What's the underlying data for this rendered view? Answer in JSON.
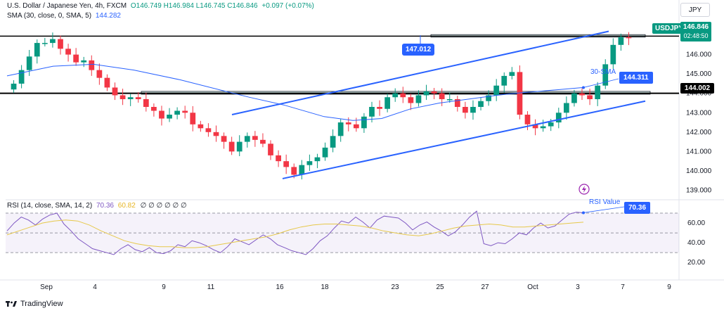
{
  "header": {
    "symbol_line": "U.S. Dollar / Japanese Yen, 4h, FXCM",
    "ohlc": "O146.749 H146.984 L146.745 C146.846",
    "change": "+0.097 (+0.07%)",
    "sma_label": "SMA (30, close, 0, SMA, 5)",
    "sma_value": "144.282",
    "rsi_label": "RSI (14, close, SMA, 14, 2)",
    "rsi_value": "70.36",
    "rsi_sma_value": "60.82",
    "rsi_tail": "∅ ∅ ∅ ∅ ∅ ∅"
  },
  "currency_button": "JPY",
  "price_badge": {
    "symbol": "USDJPY",
    "price": "146.846",
    "timer": "02:48:50"
  },
  "level_badge": "144.002",
  "sma_badge": "144.311",
  "sma_annotation": "30-SMA",
  "callout_147": "147.012",
  "rsi_badge": "70.36",
  "rsi_annotation": "RSI Value",
  "footer": {
    "brand": "TradingView"
  },
  "colors": {
    "up": "#089981",
    "down": "#f23645",
    "sma": "#2962ff",
    "rsi": "#7e57c2",
    "rsi_ma": "#e6c84a",
    "channel": "#2962ff"
  },
  "chart_data": [
    {
      "type": "candlestick",
      "title": "U.S. Dollar / Japanese Yen, 4h, FXCM",
      "y_ticks": [
        139.0,
        140.0,
        141.0,
        142.0,
        143.0,
        144.0,
        145.0,
        146.0
      ],
      "y_tick_labels": [
        "139.000",
        "140.000",
        "141.000",
        "142.000",
        "143.000",
        "144.000",
        "145.000",
        "146.000"
      ],
      "ylim": [
        138.8,
        147.8
      ],
      "x_tick_labels": [
        "Sep",
        "4",
        "9",
        "11",
        "16",
        "18",
        "23",
        "25",
        "27",
        "Oct",
        "3",
        "7",
        "9"
      ],
      "horizontal_lines": [
        146.95,
        144.002
      ],
      "zones": [
        {
          "low": 146.9,
          "high": 147.03
        },
        {
          "low": 143.99,
          "high": 144.1
        }
      ],
      "close_series": [
        144.5,
        145.2,
        145.9,
        146.6,
        146.6,
        146.8,
        146.3,
        146.0,
        145.6,
        145.7,
        145.2,
        144.8,
        144.3,
        143.9,
        143.7,
        143.8,
        143.7,
        143.3,
        143.1,
        142.7,
        142.9,
        143.1,
        143.0,
        142.4,
        142.2,
        142.0,
        141.8,
        141.5,
        141.0,
        141.5,
        141.8,
        141.6,
        141.4,
        140.8,
        140.5,
        140.2,
        139.8,
        140.3,
        140.5,
        140.7,
        141.2,
        141.8,
        142.5,
        142.4,
        142.2,
        142.8,
        143.3,
        143.2,
        143.8,
        144.0,
        143.8,
        143.5,
        143.9,
        144.1,
        144.0,
        143.7,
        143.7,
        143.3,
        143.0,
        143.3,
        143.6,
        143.9,
        144.4,
        144.9,
        145.1,
        142.9,
        142.4,
        142.2,
        142.3,
        142.5,
        143.0,
        143.5,
        144.0,
        143.9,
        143.7,
        144.4,
        145.5,
        146.5,
        146.9,
        146.85
      ],
      "sma": {
        "name": "30-SMA",
        "x_frac": [
          0.0,
          0.08,
          0.15,
          0.22,
          0.3,
          0.38,
          0.42,
          0.48,
          0.55,
          0.6,
          0.65,
          0.7,
          0.75,
          0.8,
          0.85,
          0.88,
          0.92,
          0.96,
          1.0
        ],
        "values": [
          144.9,
          145.4,
          145.5,
          145.2,
          144.7,
          144.1,
          143.8,
          143.4,
          142.8,
          142.6,
          142.7,
          143.2,
          143.5,
          143.7,
          143.9,
          144.0,
          144.1,
          144.2,
          144.3
        ]
      },
      "channel": [
        {
          "from": [
            0.0,
            139.6
          ],
          "to": [
            1.0,
            143.6
          ]
        },
        {
          "from": [
            0.0,
            142.9
          ],
          "to": [
            1.0,
            147.2
          ]
        }
      ]
    },
    {
      "type": "line",
      "title": "RSI (14, close, SMA, 14, 2)",
      "y_ticks": [
        20.0,
        40.0,
        60.0
      ],
      "y_tick_labels": [
        "20.00",
        "40.00",
        "60.00"
      ],
      "ylim": [
        18,
        75
      ],
      "bands": [
        70,
        50,
        30
      ],
      "series": [
        {
          "name": "RSI",
          "values": [
            52,
            60,
            66,
            63,
            58,
            64,
            68,
            70,
            59,
            52,
            44,
            39,
            34,
            32,
            30,
            28,
            34,
            38,
            33,
            31,
            35,
            30,
            29,
            32,
            38,
            36,
            42,
            40,
            37,
            33,
            30,
            36,
            44,
            41,
            38,
            43,
            48,
            44,
            38,
            35,
            32,
            30,
            28,
            34,
            42,
            47,
            55,
            62,
            60,
            66,
            61,
            55,
            63,
            67,
            66,
            65,
            60,
            53,
            58,
            61,
            56,
            52,
            47,
            51,
            58,
            66,
            72,
            39,
            37,
            40,
            39,
            44,
            50,
            48,
            55,
            60,
            55,
            57,
            63,
            69,
            71,
            70.4
          ]
        },
        {
          "name": "RSI SMA",
          "values": [
            48,
            52,
            56,
            60,
            62,
            63,
            62,
            58,
            52,
            47,
            42,
            39,
            37,
            36,
            36,
            35,
            35,
            36,
            38,
            40,
            42,
            44,
            46,
            49,
            53,
            56,
            58,
            59,
            59,
            58,
            57,
            55,
            52,
            50,
            48,
            47,
            49,
            52,
            55,
            57,
            58,
            59,
            58,
            56,
            56,
            57,
            58,
            59,
            60,
            60.8
          ]
        }
      ]
    }
  ]
}
